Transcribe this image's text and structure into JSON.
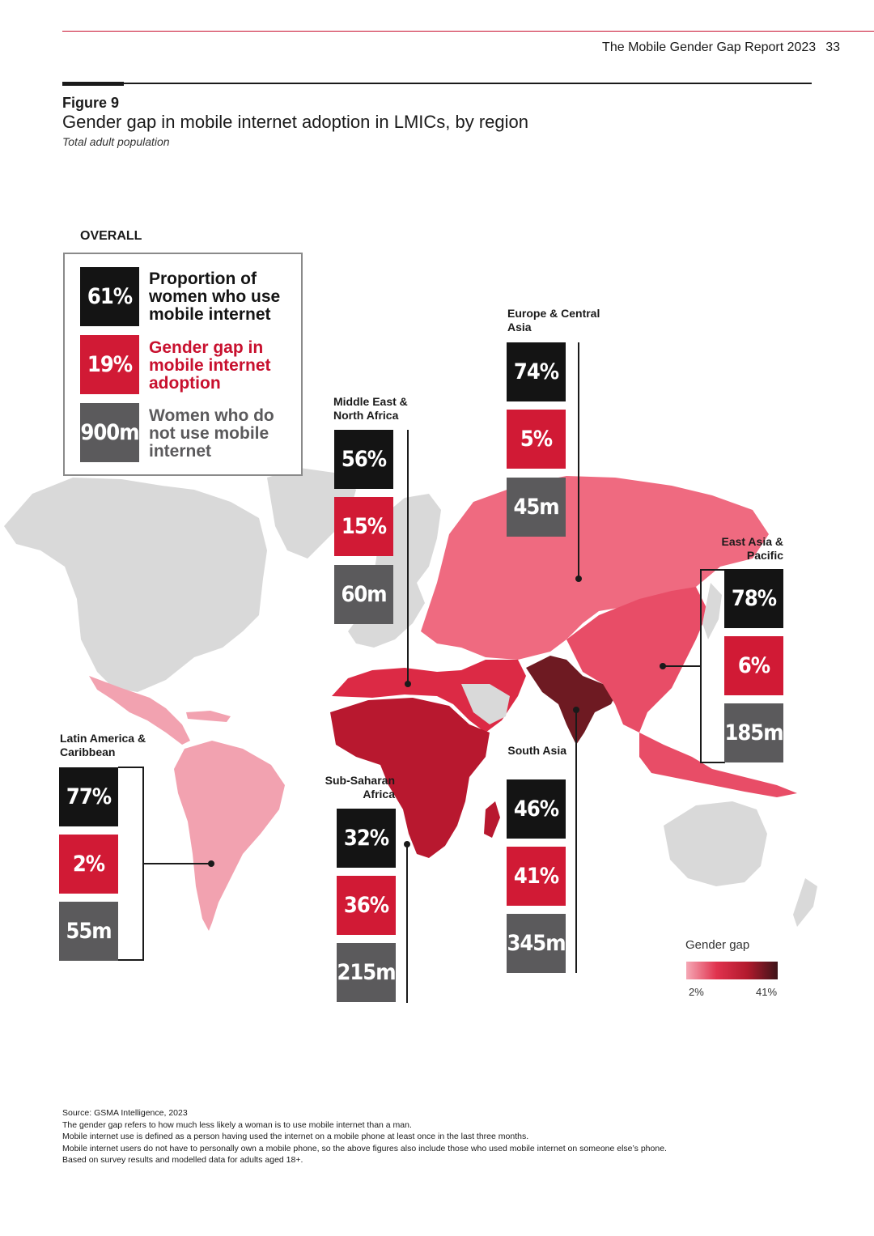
{
  "header": {
    "report_title": "The Mobile Gender Gap Report 2023",
    "page_number": "33"
  },
  "figure": {
    "label": "Figure 9",
    "title": "Gender gap in mobile internet adoption in LMICs, by region",
    "subtitle": "Total adult population"
  },
  "overall": {
    "heading": "OVERALL",
    "items": [
      {
        "value": "61%",
        "text": "Proportion of women who use mobile internet",
        "color": "#141414"
      },
      {
        "value": "19%",
        "text": "Gender gap in mobile internet adoption",
        "color": "#c8102e"
      },
      {
        "value": "900m",
        "text": "Women who do not use mobile internet",
        "color": "#5b5a5c"
      }
    ]
  },
  "regions": [
    {
      "key": "lac",
      "name": "Latin America & Caribbean",
      "usage": "77%",
      "gap": "2%",
      "non_users": "55m",
      "map_color": "#f2a2b0"
    },
    {
      "key": "mena",
      "name": "Middle East & North Africa",
      "usage": "56%",
      "gap": "15%",
      "non_users": "60m",
      "map_color": "#dc2a45"
    },
    {
      "key": "eca",
      "name": "Europe & Central Asia",
      "usage": "74%",
      "gap": "5%",
      "non_users": "45m",
      "map_color": "#ef6a80"
    },
    {
      "key": "eap",
      "name": "East Asia & Pacific",
      "usage": "78%",
      "gap": "6%",
      "non_users": "185m",
      "map_color": "#e84d67"
    },
    {
      "key": "sa",
      "name": "South Asia",
      "usage": "46%",
      "gap": "41%",
      "non_users": "345m",
      "map_color": "#6e1a22"
    },
    {
      "key": "ssa",
      "name": "Sub-Saharan Africa",
      "usage": "32%",
      "gap": "36%",
      "non_users": "215m",
      "map_color": "#b8182f"
    }
  ],
  "legend": {
    "title": "Gender gap",
    "min_label": "2%",
    "max_label": "41%",
    "min_value": 2,
    "max_value": 41
  },
  "footnotes": [
    "Source: GSMA Intelligence, 2023",
    "The gender gap refers to how much less likely a woman is to use mobile internet than a man.",
    "Mobile internet use is defined as a person having used the internet on a mobile phone at least once in the last three months.",
    "Mobile internet users do not have to personally own a mobile phone, so the above figures also include those who used mobile internet on someone else’s phone.",
    "Based on survey results and modelled data for adults aged 18+."
  ],
  "colors": {
    "accent": "#c8102e",
    "land_other": "#d9d9d9",
    "tile_black": "#141414",
    "tile_red": "#d11a35",
    "tile_grey": "#5b5a5c"
  }
}
